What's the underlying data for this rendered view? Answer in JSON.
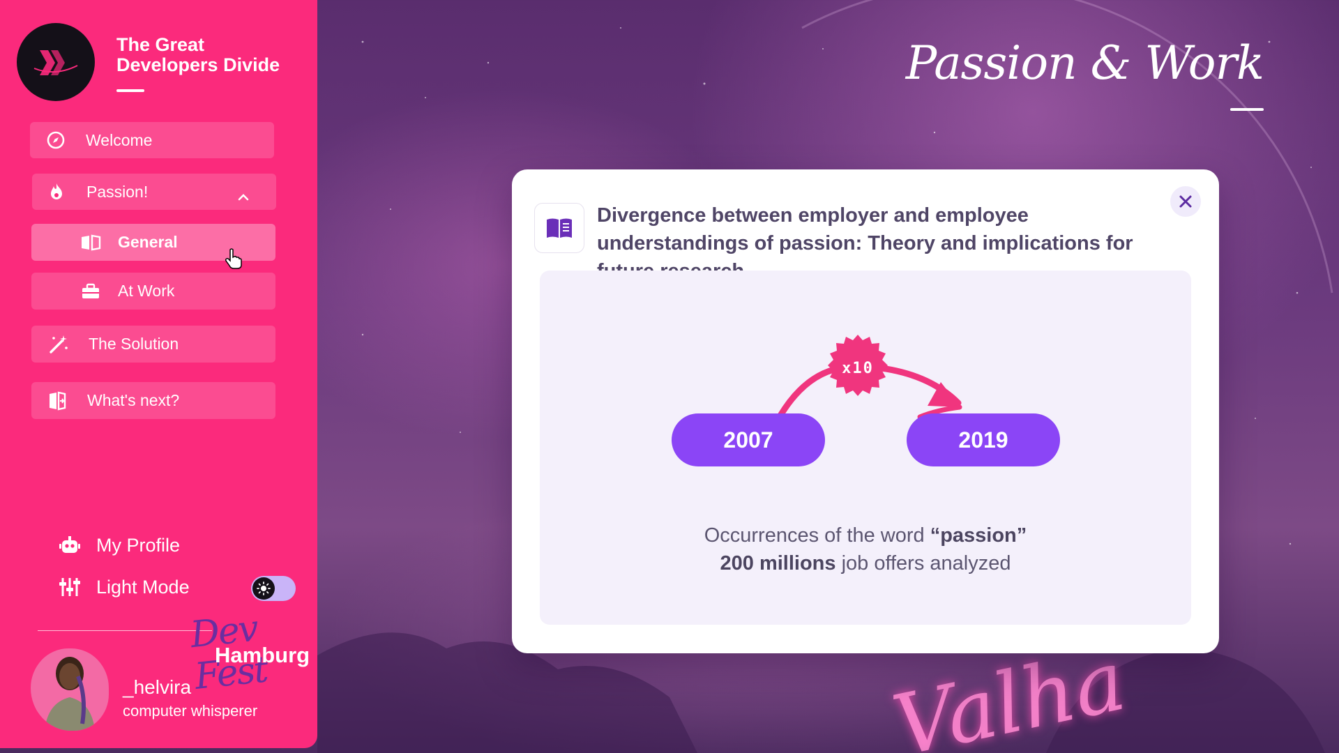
{
  "app": {
    "title_line1": "The Great",
    "title_line2": "Developers Divide",
    "accent": "#fb2a7c",
    "purple": "#8b45f6"
  },
  "sidebar": {
    "items": [
      {
        "label": "Welcome",
        "icon": "compass-icon"
      },
      {
        "label": "Passion!",
        "icon": "flame-icon",
        "expanded": true
      },
      {
        "label": "General",
        "icon": "open-book-icon",
        "active": true
      },
      {
        "label": "At Work",
        "icon": "briefcase-icon"
      },
      {
        "label": "The Solution",
        "icon": "magic-wand-icon"
      },
      {
        "label": "What's next?",
        "icon": "book-arrow-icon"
      }
    ],
    "profile_label": "My Profile",
    "mode_label": "Light Mode",
    "event_script": "Dev Fest",
    "event_city": "Hamburg",
    "user_name": "_helvira",
    "user_role": "computer whisperer"
  },
  "header": {
    "slide_title": "Passion & Work",
    "background_sign": "Valha"
  },
  "modal": {
    "title": "Divergence between employer and employee understandings of passion: Theory and implications for future research",
    "figure": {
      "from_year": "2007",
      "to_year": "2019",
      "multiplier": "x10",
      "caption_line1_pre": "Occurrences  of the word ",
      "caption_line1_bold": "“passion”",
      "caption_line2_bold": "200 millions",
      "caption_line2_post": " job offers analyzed"
    }
  }
}
